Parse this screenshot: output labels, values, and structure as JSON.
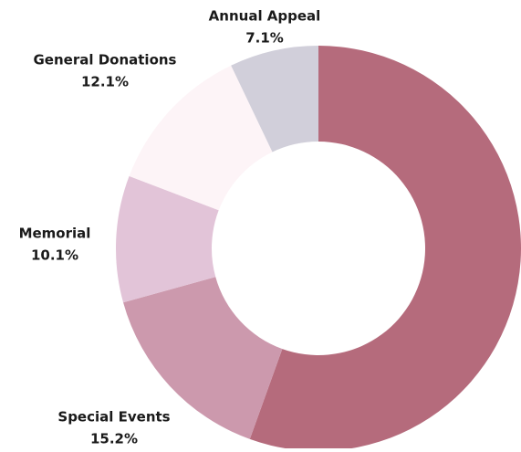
{
  "chart_data": {
    "type": "donut",
    "categories": [
      null,
      "Special Events",
      "Memorial",
      "General Donations",
      "Annual Appeal"
    ],
    "values": [
      55.5,
      15.2,
      10.1,
      12.1,
      7.1
    ],
    "value_labels": [
      null,
      "15.2%",
      "10.1%",
      "12.1%",
      "7.1%"
    ],
    "colors": [
      "#b56b7c",
      "#cc99ad",
      "#e2c4d8",
      "#fdf4f7",
      "#d1cfda"
    ]
  }
}
